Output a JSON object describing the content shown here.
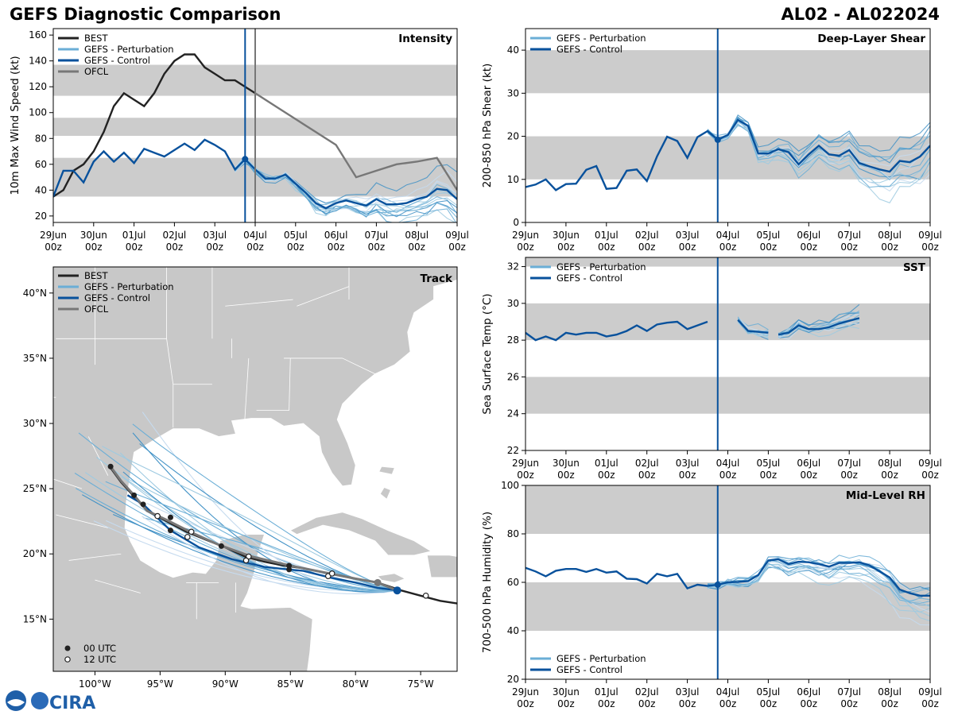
{
  "header": {
    "title": "GEFS Diagnostic Comparison",
    "storm_id": "AL02 - AL022024"
  },
  "logos": {
    "noaa": "NOAA",
    "cira": "CIRA"
  },
  "colors": {
    "best": "#222222",
    "perturbation": "#6aaed6",
    "control": "#08519c",
    "ofcl": "#777777",
    "band": "#cccccc",
    "land": "#c8c8c8"
  },
  "time_axis": {
    "labels": [
      "29Jun\n00z",
      "30Jun\n00z",
      "01Jul\n00z",
      "02Jul\n00z",
      "03Jul\n00z",
      "04Jul\n00z",
      "05Jul\n00z",
      "06Jul\n00z",
      "07Jul\n00z",
      "08Jul\n00z",
      "09Jul\n00z"
    ],
    "init_day": 4.75,
    "ofcl_day": 5.0
  },
  "chart_data": [
    {
      "id": "intensity",
      "type": "line",
      "title": "Intensity",
      "ylabel": "10m Max Wind Speed (kt)",
      "xlim": [
        0,
        10
      ],
      "ylim": [
        15,
        165
      ],
      "yticks": [
        20,
        40,
        60,
        80,
        100,
        120,
        140,
        160
      ],
      "bands": [
        [
          35,
          65
        ],
        [
          82,
          96
        ],
        [
          113,
          137
        ]
      ],
      "legend": [
        "BEST",
        "GEFS - Perturbation",
        "GEFS - Control",
        "OFCL"
      ],
      "series": [
        {
          "name": "BEST",
          "x": [
            0,
            0.25,
            0.5,
            0.75,
            1,
            1.25,
            1.5,
            1.75,
            2,
            2.25,
            2.5,
            2.75,
            3,
            3.25,
            3.5,
            3.75,
            4,
            4.25,
            4.5,
            4.75,
            5
          ],
          "values": [
            35,
            40,
            55,
            60,
            70,
            85,
            105,
            115,
            110,
            105,
            115,
            130,
            140,
            145,
            145,
            135,
            130,
            125,
            125,
            120,
            115
          ]
        },
        {
          "name": "GEFS - Control",
          "x": [
            0,
            0.25,
            0.5,
            0.75,
            1,
            1.25,
            1.5,
            1.75,
            2,
            2.25,
            2.5,
            2.75,
            3,
            3.25,
            3.5,
            3.75,
            4,
            4.25,
            4.5,
            4.75,
            5,
            5.25,
            5.5,
            5.75,
            6,
            6.25,
            6.5,
            6.75,
            7,
            7.25,
            7.5,
            7.75,
            8,
            8.25,
            8.5,
            8.75,
            9,
            9.25,
            9.5,
            9.75,
            10
          ],
          "values": [
            35,
            55,
            55,
            46,
            62,
            70,
            62,
            69,
            61,
            72,
            69,
            66,
            71,
            76,
            71,
            79,
            75,
            70,
            56,
            64,
            56,
            49,
            49,
            52,
            45,
            38,
            30,
            26,
            30,
            32,
            30,
            28,
            33,
            29,
            29,
            30,
            33,
            35,
            41,
            40,
            33
          ]
        },
        {
          "name": "OFCL",
          "x": [
            5,
            5.5,
            6,
            6.5,
            7,
            7.5,
            8,
            8.5,
            9,
            9.5,
            10
          ],
          "values": [
            115,
            105,
            95,
            85,
            75,
            50,
            55,
            60,
            62,
            65,
            40
          ]
        }
      ]
    },
    {
      "id": "shear",
      "type": "line",
      "title": "Deep-Layer Shear",
      "ylabel": "200-850 hPa Shear (kt)",
      "xlim": [
        0,
        10
      ],
      "ylim": [
        0,
        45
      ],
      "yticks": [
        0,
        10,
        20,
        30,
        40
      ],
      "bands": [
        [
          10,
          20
        ],
        [
          30,
          40
        ]
      ],
      "legend": [
        "GEFS - Perturbation",
        "GEFS - Control"
      ],
      "series": [
        {
          "name": "GEFS - Control",
          "x": [
            0,
            0.25,
            0.5,
            0.75,
            1,
            1.25,
            1.5,
            1.75,
            2,
            2.25,
            2.5,
            2.75,
            3,
            3.25,
            3.5,
            3.75,
            4,
            4.25,
            4.5,
            4.75,
            5,
            5.25,
            5.5,
            5.75,
            6,
            6.25,
            6.5,
            6.75,
            7,
            7.25,
            7.5,
            7.75,
            8,
            8.25,
            8.5,
            8.75,
            9,
            9.25,
            9.5,
            9.75,
            10
          ],
          "values": [
            8.2,
            8.8,
            10,
            7.5,
            8.9,
            9,
            12.2,
            13.1,
            7.8,
            8,
            12,
            12.3,
            9.6,
            15.3,
            19.9,
            18.9,
            15,
            19.8,
            21.2,
            19.2,
            20.3,
            23.8,
            22.4,
            16,
            16,
            17,
            16.3,
            13.5,
            15.8,
            17.8,
            15.8,
            15.5,
            16.8,
            13.8,
            13,
            12.3,
            11.8,
            14.3,
            14,
            15.3,
            17.8
          ]
        }
      ]
    },
    {
      "id": "sst",
      "type": "line",
      "title": "SST",
      "ylabel": "Sea Surface Temp (°C)",
      "xlim": [
        0,
        10
      ],
      "ylim": [
        22,
        32.5
      ],
      "yticks": [
        22,
        24,
        26,
        28,
        30,
        32
      ],
      "bands": [
        [
          24,
          26
        ],
        [
          28,
          30
        ],
        [
          32,
          32.5
        ]
      ],
      "legend": [
        "GEFS - Perturbation",
        "GEFS - Control"
      ],
      "series": [
        {
          "name": "GEFS - Control",
          "x": [
            0,
            0.25,
            0.5,
            0.75,
            1,
            1.25,
            1.5,
            1.75,
            2,
            2.25,
            2.5,
            2.75,
            3,
            3.25,
            3.5,
            3.75,
            4,
            4.25,
            4.5
          ],
          "values": [
            28.4,
            28,
            28.2,
            28,
            28.4,
            28.3,
            28.4,
            28.4,
            28.2,
            28.3,
            28.5,
            28.8,
            28.5,
            28.85,
            28.95,
            29,
            28.6,
            28.8,
            29
          ]
        },
        {
          "name": "GEFS - Control",
          "x": [
            5.25,
            5.5,
            5.75,
            6
          ],
          "values": [
            29.1,
            28.5,
            28.45,
            28.4
          ]
        },
        {
          "name": "GEFS - Control",
          "x": [
            6.25,
            6.5,
            6.75,
            7,
            7.25,
            7.5,
            7.75,
            8,
            8.25
          ],
          "values": [
            28.3,
            28.4,
            28.8,
            28.6,
            28.6,
            28.7,
            28.9,
            29.05,
            29.2
          ]
        }
      ]
    },
    {
      "id": "rh",
      "type": "line",
      "title": "Mid-Level RH",
      "ylabel": "700-500 hPa Humidity (%)",
      "xlim": [
        0,
        10
      ],
      "ylim": [
        20,
        100
      ],
      "yticks": [
        20,
        40,
        60,
        80,
        100
      ],
      "bands": [
        [
          40,
          60
        ],
        [
          80,
          100
        ]
      ],
      "legend": [
        "GEFS - Perturbation",
        "GEFS - Control"
      ],
      "series": [
        {
          "name": "GEFS - Control",
          "x": [
            0,
            0.25,
            0.5,
            0.75,
            1,
            1.25,
            1.5,
            1.75,
            2,
            2.25,
            2.5,
            2.75,
            3,
            3.25,
            3.5,
            3.75,
            4,
            4.25,
            4.5,
            4.75,
            5,
            5.25,
            5.5,
            5.75,
            6,
            6.25,
            6.5,
            6.75,
            7,
            7.25,
            7.5,
            7.75,
            8,
            8.25,
            8.5,
            8.75,
            9,
            9.25,
            9.5,
            9.75,
            10
          ],
          "values": [
            66,
            64.5,
            62.5,
            64.8,
            65.5,
            65.5,
            64.3,
            65.5,
            64,
            64.5,
            61.5,
            61.3,
            59.5,
            63.5,
            62.5,
            63.5,
            57.5,
            59,
            58.5,
            59,
            60,
            60.2,
            60.5,
            63,
            69,
            69.5,
            67.5,
            68.5,
            68.3,
            67.5,
            66.5,
            68,
            68,
            68.3,
            67,
            64.5,
            62,
            57,
            55.5,
            54.5,
            54.5
          ]
        }
      ]
    },
    {
      "id": "track",
      "type": "scatter",
      "title": "Track",
      "xlim": [
        -103.2,
        -72.2
      ],
      "ylim": [
        11,
        42
      ],
      "xticks": [
        -100,
        -95,
        -90,
        -85,
        -80,
        -75
      ],
      "xticklabels": [
        "100°W",
        "95°W",
        "90°W",
        "85°W",
        "80°W",
        "75°W"
      ],
      "yticks": [
        15,
        20,
        25,
        30,
        35,
        40
      ],
      "yticklabels": [
        "15°N",
        "20°N",
        "25°N",
        "30°N",
        "35°N",
        "40°N"
      ],
      "legend": [
        "BEST",
        "GEFS - Perturbation",
        "GEFS - Control",
        "OFCL"
      ],
      "time_legend": [
        "00 UTC",
        "12 UTC"
      ],
      "series": [
        {
          "name": "BEST",
          "lon": [
            -72.2,
            -73.5,
            -75,
            -76.5,
            -78.3,
            -80,
            -82,
            -84,
            -85.5,
            -87,
            -88.5,
            -90,
            -91.5,
            -93,
            -94.5,
            -96,
            -97,
            -98,
            -98.8
          ],
          "lat": [
            16.2,
            16.4,
            16.8,
            17.2,
            17.8,
            18.1,
            18.5,
            18.9,
            19.1,
            19.4,
            19.8,
            20.5,
            21.1,
            21.7,
            22.5,
            23.3,
            24.4,
            25.5,
            26.6
          ]
        },
        {
          "name": "GEFS - Control",
          "lon": [
            -76.8,
            -78.3,
            -80,
            -82,
            -84,
            -85.1,
            -87,
            -89.5,
            -92,
            -94.2,
            -96.3,
            -97.5
          ],
          "lat": [
            17.2,
            17.4,
            17.8,
            18.2,
            18.7,
            18.8,
            19,
            19.6,
            20.5,
            21.8,
            23.8,
            24.5
          ]
        },
        {
          "name": "OFCL",
          "lon": [
            -76.8,
            -78.3,
            -80,
            -82,
            -85,
            -88,
            -90.5,
            -92.5,
            -94.5,
            -96,
            -97,
            -98,
            -98.8
          ],
          "lat": [
            17.2,
            17.8,
            18.1,
            18.5,
            19.1,
            19.8,
            20.7,
            21.6,
            22.6,
            23.3,
            24.5,
            25.6,
            26.7
          ]
        },
        {
          "name": "00 UTC",
          "lon": [
            -98.8,
            -97,
            -96.3,
            -94.2,
            -94.2,
            -90.3,
            -85.1,
            -85.1
          ],
          "lat": [
            26.7,
            24.5,
            23.8,
            22.8,
            21.8,
            20.6,
            19.1,
            18.8
          ]
        },
        {
          "name": "12 UTC",
          "lon": [
            -95.2,
            -92.6,
            -92.9,
            -88.2,
            -88.4,
            -82.1,
            -81.8,
            -74.6
          ],
          "lat": [
            22.9,
            21.7,
            21.3,
            19.8,
            19.5,
            18.3,
            18.5,
            16.8
          ]
        }
      ]
    }
  ]
}
